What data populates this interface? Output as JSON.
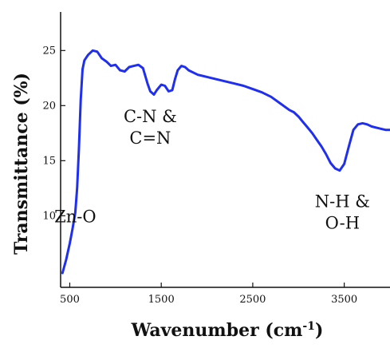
{
  "chart_data": {
    "type": "line",
    "title": "",
    "xlabel": "Wavenumber (cm",
    "xlabel_sup": "-1",
    "xlabel_suffix": ")",
    "ylabel": "Transmittance (%)",
    "xlim": [
      400,
      4000
    ],
    "ylim": [
      3.5,
      28.5
    ],
    "x_ticks": [
      500,
      1500,
      2500,
      3500
    ],
    "x_tick_labels": [
      "500",
      "1500",
      "2500",
      "3500"
    ],
    "y_ticks": [
      10,
      15,
      20,
      25
    ],
    "y_tick_labels": [
      "10",
      "15",
      "20",
      "25"
    ],
    "grid": false,
    "legend": false,
    "series": [
      {
        "color": "#1f2ff2",
        "x": [
          420,
          460,
          500,
          530,
          560,
          580,
          600,
          620,
          640,
          660,
          700,
          750,
          800,
          850,
          900,
          950,
          1000,
          1050,
          1100,
          1150,
          1200,
          1250,
          1300,
          1350,
          1380,
          1420,
          1450,
          1500,
          1540,
          1580,
          1620,
          1650,
          1680,
          1720,
          1760,
          1800,
          1900,
          2000,
          2100,
          2200,
          2300,
          2400,
          2500,
          2600,
          2700,
          2800,
          2900,
          2950,
          3000,
          3050,
          3100,
          3150,
          3200,
          3250,
          3300,
          3350,
          3400,
          3450,
          3500,
          3550,
          3600,
          3650,
          3700,
          3750,
          3800,
          3850,
          3900,
          3950,
          4000
        ],
        "y": [
          4.8,
          6.0,
          7.5,
          8.8,
          10.3,
          12.5,
          16.0,
          20.5,
          23.3,
          24.1,
          24.6,
          25.0,
          24.9,
          24.3,
          24.0,
          23.6,
          23.7,
          23.2,
          23.1,
          23.5,
          23.6,
          23.7,
          23.4,
          22.0,
          21.3,
          21.0,
          21.4,
          21.9,
          21.8,
          21.3,
          21.4,
          22.4,
          23.2,
          23.6,
          23.5,
          23.2,
          22.8,
          22.6,
          22.4,
          22.2,
          22.0,
          21.8,
          21.5,
          21.2,
          20.8,
          20.2,
          19.6,
          19.4,
          19.0,
          18.5,
          18.0,
          17.5,
          16.9,
          16.3,
          15.6,
          14.8,
          14.3,
          14.1,
          14.7,
          16.3,
          17.8,
          18.3,
          18.4,
          18.3,
          18.1,
          18.0,
          17.9,
          17.8,
          17.8
        ]
      }
    ],
    "annotations": [
      {
        "lines": [
          "Zn-O"
        ],
        "x": 560,
        "y": 9.4
      },
      {
        "lines": [
          "C-N &",
          "C=N"
        ],
        "x": 1380,
        "y": 18.5
      },
      {
        "lines": [
          "N-H &",
          "O-H"
        ],
        "x": 3480,
        "y": 10.8
      }
    ]
  }
}
